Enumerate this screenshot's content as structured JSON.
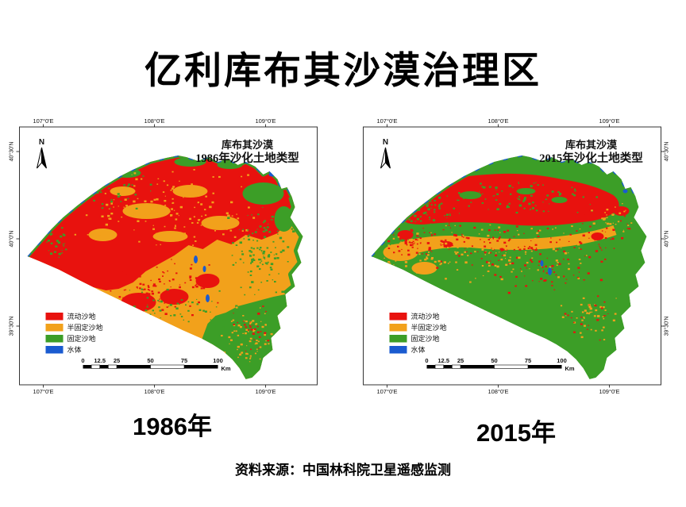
{
  "page": {
    "title": "亿利库布其沙漠治理区",
    "source": "资料来源：中国林科院卫星遥感监测"
  },
  "legend": {
    "items": [
      {
        "label": "流动沙地",
        "color": "#E8120E"
      },
      {
        "label": "半固定沙地",
        "color": "#F2A11B"
      },
      {
        "label": "固定沙地",
        "color": "#3C9E27"
      },
      {
        "label": "水体",
        "color": "#1A5BD0"
      }
    ]
  },
  "scalebar": {
    "ticks": [
      "0",
      "12.5",
      "25",
      "50",
      "75",
      "100"
    ],
    "unit": "Km"
  },
  "north_label": "N",
  "maps": [
    {
      "title_line1": "库布其沙漠",
      "title_line2": "1986年沙化土地类型",
      "year_caption": "1986年",
      "lon_labels": [
        "107°0'E",
        "108°0'E",
        "109°0'E"
      ],
      "lat_labels": [
        "40°30'N",
        "40°0'N",
        "39°30'N"
      ]
    },
    {
      "title_line1": "库布其沙漠",
      "title_line2": "2015年沙化土地类型",
      "year_caption": "2015年",
      "lon_labels": [
        "107°0'E",
        "108°0'E",
        "109°0'E"
      ],
      "lat_labels": [
        "40°30'N",
        "40°0'N",
        "39°30'N"
      ]
    }
  ]
}
